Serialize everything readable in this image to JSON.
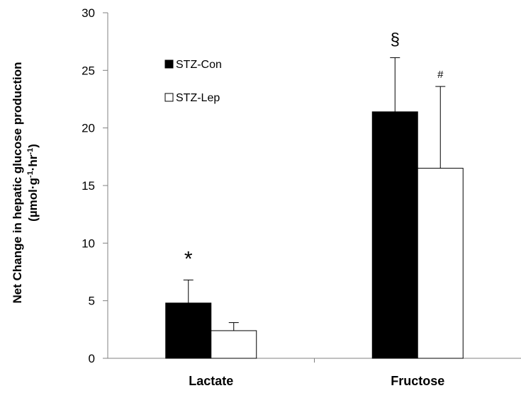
{
  "chart_data": {
    "type": "bar",
    "categories": [
      "Lactate",
      "Fructose"
    ],
    "series": [
      {
        "name": "STZ-Con",
        "color": "#000000",
        "values": [
          4.8,
          21.4
        ],
        "errors": [
          2.0,
          4.7
        ]
      },
      {
        "name": "STZ-Lep",
        "color": "#ffffff",
        "values": [
          2.4,
          16.5
        ],
        "errors": [
          0.7,
          7.1
        ]
      }
    ],
    "ylim": [
      0,
      30
    ],
    "yticks": [
      0,
      5,
      10,
      15,
      20,
      25,
      30
    ],
    "ylabel_line1": "Net Change in hepatic glucose production",
    "ylabel_line2": "(µmol·g·hr)",
    "ylabel_sup1": "-1",
    "ylabel_sup2": "-1",
    "legend_position": "top-left",
    "annotations": [
      {
        "category": 0,
        "series": 0,
        "text": "*"
      },
      {
        "category": 1,
        "series": 0,
        "text": "§"
      },
      {
        "category": 1,
        "series": 1,
        "text": "#"
      }
    ],
    "grid": false
  }
}
